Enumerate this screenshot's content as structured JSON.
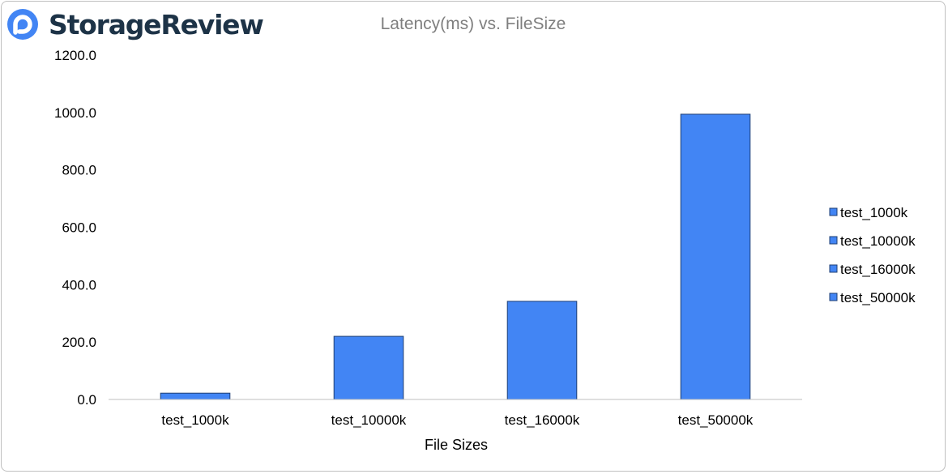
{
  "logo": {
    "text": "StorageReview",
    "icon": "storagereview-logo-icon",
    "brand_color": "#4285f4"
  },
  "chart_data": {
    "type": "bar",
    "title": "Latency(ms) vs. FileSize",
    "xlabel": "File Sizes",
    "ylabel": "",
    "categories": [
      "test_1000k",
      "test_10000k",
      "test_16000k",
      "test_50000k"
    ],
    "series": [
      {
        "name": "test_1000k",
        "values": [
          22,
          null,
          null,
          null
        ]
      },
      {
        "name": "test_10000k",
        "values": [
          null,
          220,
          null,
          null
        ]
      },
      {
        "name": "test_16000k",
        "values": [
          null,
          null,
          342,
          null
        ]
      },
      {
        "name": "test_50000k",
        "values": [
          null,
          null,
          null,
          994
        ]
      }
    ],
    "ylim": [
      0,
      1200
    ],
    "yticks": [
      "0.0",
      "200.0",
      "400.0",
      "600.0",
      "800.0",
      "1000.0",
      "1200.0"
    ],
    "legend_position": "right",
    "grid": false,
    "bar_color": "#4285f4",
    "bar_border_color": "#1f3f73"
  }
}
